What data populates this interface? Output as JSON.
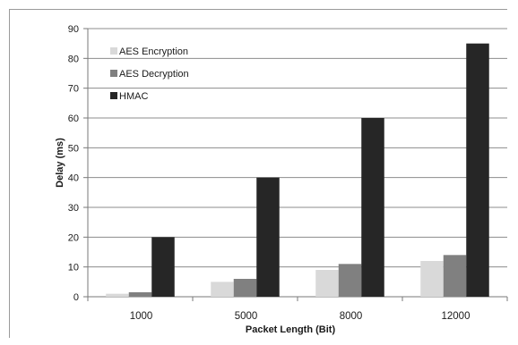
{
  "chart_data": {
    "type": "bar",
    "categories": [
      "1000",
      "5000",
      "8000",
      "12000"
    ],
    "series": [
      {
        "name": "AES Encryption",
        "color": "#d9d9d9",
        "values": [
          1,
          5,
          9,
          12
        ]
      },
      {
        "name": "AES Decryption",
        "color": "#808080",
        "values": [
          1.5,
          6,
          11,
          14
        ]
      },
      {
        "name": "HMAC",
        "color": "#262626",
        "values": [
          20,
          40,
          60,
          85
        ]
      }
    ],
    "xlabel": "Packet Length (Bit)",
    "ylabel": "Delay (ms)",
    "ylim": [
      0,
      90
    ],
    "yticks": [
      0,
      10,
      20,
      30,
      40,
      50,
      60,
      70,
      80,
      90
    ],
    "grid": true,
    "legend_position": "top-left"
  }
}
